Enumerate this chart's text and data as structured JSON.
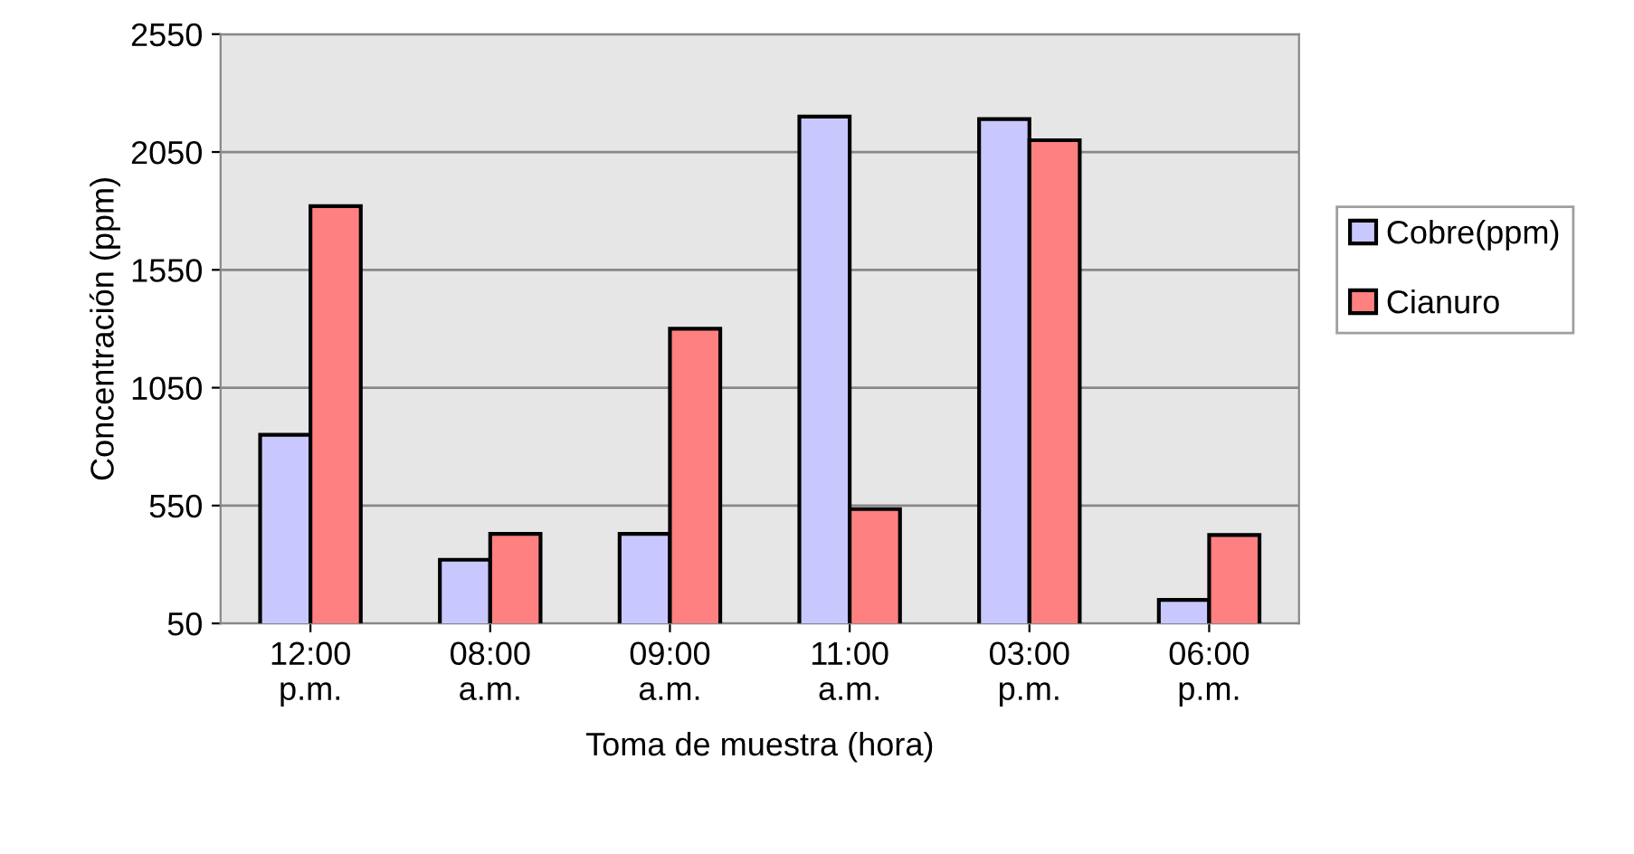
{
  "chart_data": {
    "type": "bar",
    "xlabel": "Toma de muestra (hora)",
    "ylabel": "Concentración (ppm)",
    "categories": [
      "12:00\np.m.",
      "08:00\na.m.",
      "09:00\na.m.",
      "11:00\na.m.",
      "03:00\np.m.",
      "06:00\np.m."
    ],
    "series": [
      {
        "name": "Cobre(ppm)",
        "color": "#c8c8ff",
        "values": [
          850,
          320,
          430,
          2200,
          2190,
          150
        ]
      },
      {
        "name": "Cianuro",
        "color": "#ff8080",
        "values": [
          1820,
          430,
          1300,
          535,
          2100,
          425
        ]
      }
    ],
    "ylim": [
      50,
      2550
    ],
    "yticks": [
      50,
      550,
      1050,
      1550,
      2050,
      2550
    ],
    "grid": "y",
    "legend": "right"
  }
}
